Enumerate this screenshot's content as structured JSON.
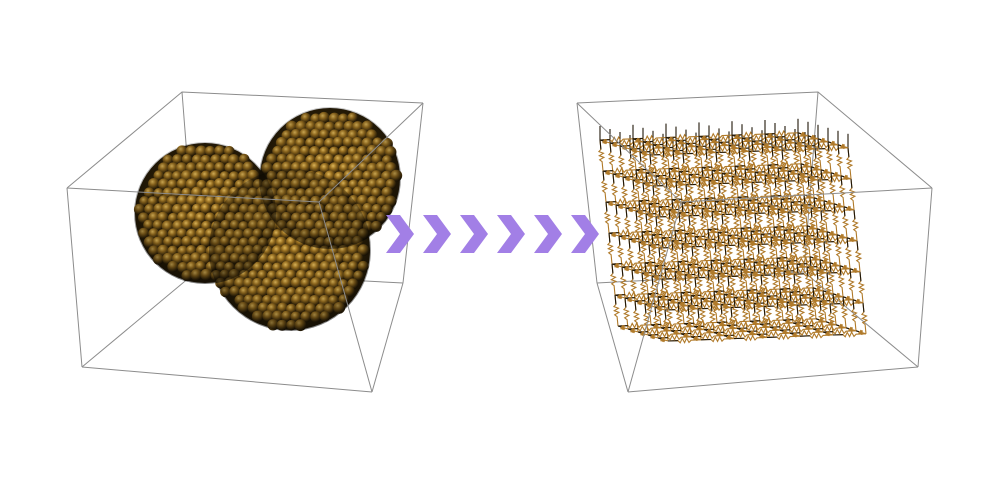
{
  "diagram": {
    "left_panel": {
      "depicts": "sphere-cluster",
      "clusters": 3
    },
    "connector": {
      "icon": "chevron-arrow-icon",
      "chevrons": 6,
      "color": "#a27fe6"
    },
    "right_panel": {
      "depicts": "resistor-network-lattice"
    },
    "colors": {
      "box_edge": "#8c8c8c",
      "sphere_dark": "#1c1406",
      "sphere_mid": "#7a5a14",
      "sphere_light": "#d2a84a",
      "wire": "#1e1608",
      "resistor": "#b07a2a"
    }
  }
}
